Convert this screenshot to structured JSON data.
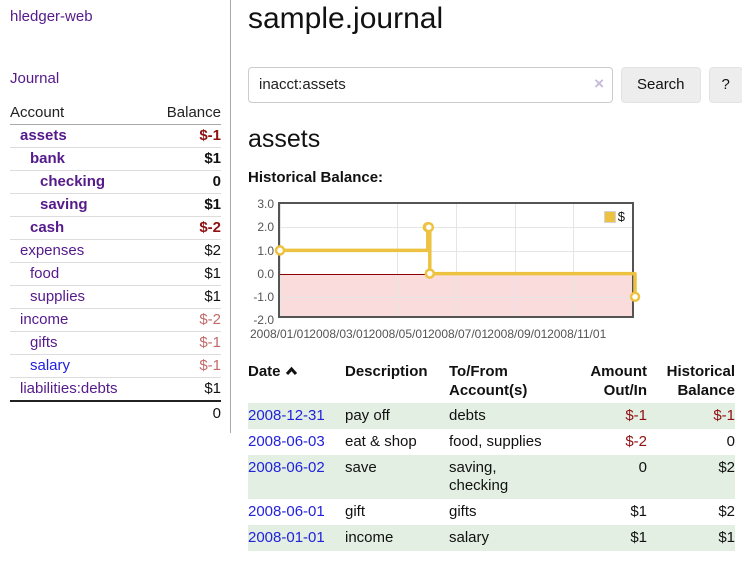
{
  "sidebar": {
    "app_title": "hledger-web",
    "nav_journal": "Journal",
    "accounts": {
      "header_account": "Account",
      "header_balance": "Balance",
      "rows": [
        {
          "name": "assets",
          "indent": 1,
          "balance": "$-1"
        },
        {
          "name": "bank",
          "indent": 2,
          "balance": "$1"
        },
        {
          "name": "checking",
          "indent": 3,
          "balance": "0"
        },
        {
          "name": "saving",
          "indent": 3,
          "balance": "$1"
        },
        {
          "name": "cash",
          "indent": 2,
          "balance": "$-2"
        },
        {
          "name": "expenses",
          "indent": 1,
          "balance": "$2"
        },
        {
          "name": "food",
          "indent": 2,
          "balance": "$1"
        },
        {
          "name": "supplies",
          "indent": 2,
          "balance": "$1"
        },
        {
          "name": "income",
          "indent": 1,
          "balance": "$-2"
        },
        {
          "name": "gifts",
          "indent": 2,
          "balance": "$-1"
        },
        {
          "name": "salary",
          "indent": 2,
          "balance": "$-1"
        },
        {
          "name": "liabilities:debts",
          "indent": 1,
          "balance": "$1"
        }
      ],
      "total": "0"
    }
  },
  "header": {
    "title": "sample.journal"
  },
  "search": {
    "value": "inacct:assets",
    "clear_icon": "×",
    "search_label": "Search",
    "help_label": "?"
  },
  "content": {
    "heading": "assets",
    "chart_label": "Historical Balance:"
  },
  "chart_data": {
    "type": "line",
    "style": "steps",
    "title": "Historical Balance",
    "series": [
      {
        "name": "$",
        "color": "#EDC240",
        "points": [
          [
            "2008-01-01",
            1.0
          ],
          [
            "2008-06-01",
            2.0
          ],
          [
            "2008-06-02",
            2.0
          ],
          [
            "2008-06-03",
            0.0
          ],
          [
            "2008-12-31",
            -1.0
          ]
        ]
      }
    ],
    "ylim": [
      -2.0,
      3.0
    ],
    "ytick_labels": [
      "3.0",
      "2.0",
      "1.0",
      "0.0",
      "-1.0",
      "-2.0"
    ],
    "xtick_labels": [
      "2008/01/01",
      "2008/03/01",
      "2008/05/01",
      "2008/07/01",
      "2008/09/01",
      "2008/11/01"
    ],
    "x_range": [
      "2008-01-01",
      "2009-01-01"
    ],
    "grid": true,
    "legend_position": "top-right",
    "negative_region_color": "#fbdcdc",
    "zero_line_color": "#8b0000"
  },
  "transactions": {
    "headers": {
      "date": "Date",
      "description": "Description",
      "accounts": "To/From Account(s)",
      "amount": "Amount Out/In",
      "balance": "Historical Balance"
    },
    "rows": [
      {
        "date": "2008-12-31",
        "description": "pay off",
        "accounts": "debts",
        "amount": "$-1",
        "balance": "$-1"
      },
      {
        "date": "2008-06-03",
        "description": "eat & shop",
        "accounts": "food, supplies",
        "amount": "$-2",
        "balance": "0"
      },
      {
        "date": "2008-06-02",
        "description": "save",
        "accounts": "saving,\nchecking",
        "amount": "0",
        "balance": "$2"
      },
      {
        "date": "2008-06-01",
        "description": "gift",
        "accounts": "gifts",
        "amount": "$1",
        "balance": "$2"
      },
      {
        "date": "2008-01-01",
        "description": "income",
        "accounts": "salary",
        "amount": "$1",
        "balance": "$1"
      }
    ]
  }
}
